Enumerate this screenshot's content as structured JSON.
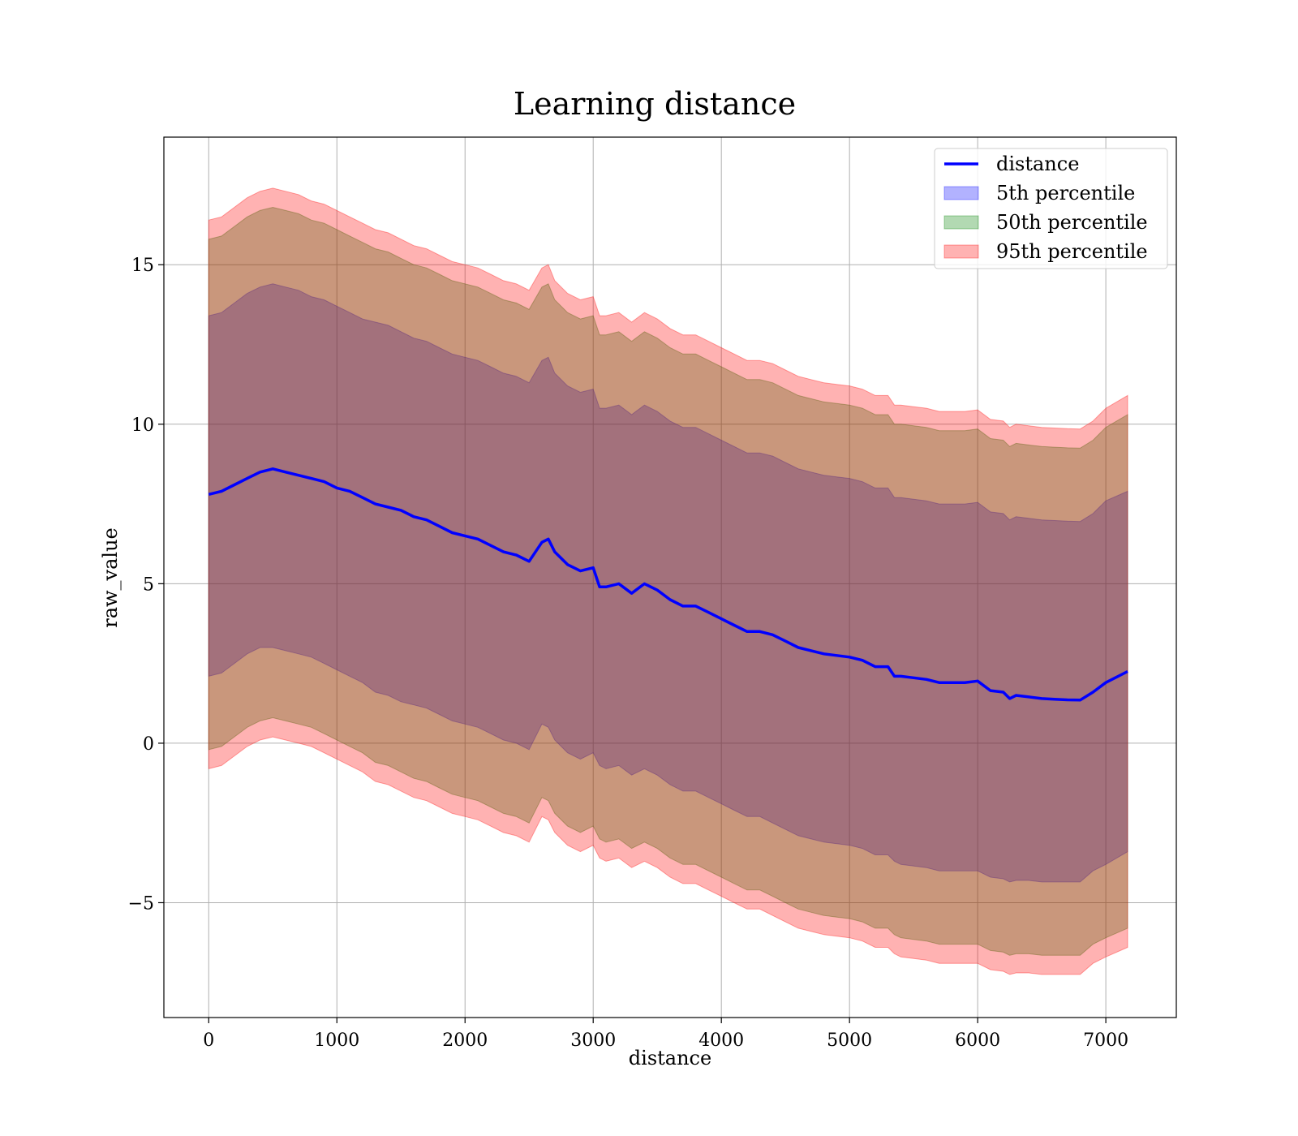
{
  "chart_data": {
    "type": "area",
    "title": "Learning distance",
    "xlabel": "distance",
    "ylabel": "raw_value",
    "xlim": [
      -350,
      7550
    ],
    "ylim": [
      -8.6,
      19.0
    ],
    "xticks": [
      0,
      1000,
      2000,
      3000,
      4000,
      5000,
      6000,
      7000
    ],
    "xtick_labels": [
      "0",
      "1000",
      "2000",
      "3000",
      "4000",
      "5000",
      "6000",
      "7000"
    ],
    "yticks": [
      -5,
      0,
      5,
      10,
      15
    ],
    "ytick_labels": [
      "−5",
      "0",
      "5",
      "10",
      "15"
    ],
    "grid": true,
    "legend_position": "top-right",
    "x": [
      0,
      100,
      200,
      300,
      400,
      500,
      600,
      700,
      800,
      900,
      1000,
      1100,
      1200,
      1300,
      1400,
      1500,
      1600,
      1700,
      1800,
      1900,
      2000,
      2100,
      2200,
      2300,
      2400,
      2500,
      2600,
      2650,
      2700,
      2800,
      2900,
      3000,
      3050,
      3100,
      3200,
      3300,
      3400,
      3500,
      3600,
      3700,
      3800,
      3900,
      4000,
      4100,
      4200,
      4300,
      4400,
      4500,
      4600,
      4700,
      4800,
      4900,
      5000,
      5100,
      5200,
      5300,
      5350,
      5400,
      5500,
      5600,
      5700,
      5800,
      5900,
      6000,
      6100,
      6200,
      6250,
      6300,
      6400,
      6500,
      6600,
      6700,
      6800,
      6900,
      7000,
      7170
    ],
    "series": [
      {
        "name": "distance",
        "kind": "line",
        "color": "#0000ff",
        "values": [
          7.8,
          7.9,
          8.1,
          8.3,
          8.5,
          8.6,
          8.5,
          8.4,
          8.3,
          8.2,
          8.0,
          7.9,
          7.7,
          7.5,
          7.4,
          7.3,
          7.1,
          7.0,
          6.8,
          6.6,
          6.5,
          6.4,
          6.2,
          6.0,
          5.9,
          5.7,
          6.3,
          6.4,
          6.0,
          5.6,
          5.4,
          5.5,
          4.9,
          4.9,
          5.0,
          4.7,
          5.0,
          4.8,
          4.5,
          4.3,
          4.3,
          4.1,
          3.9,
          3.7,
          3.5,
          3.5,
          3.4,
          3.2,
          3.0,
          2.9,
          2.8,
          2.75,
          2.7,
          2.6,
          2.4,
          2.4,
          2.1,
          2.1,
          2.05,
          2.0,
          1.9,
          1.9,
          1.9,
          1.95,
          1.65,
          1.6,
          1.4,
          1.5,
          1.45,
          1.4,
          1.38,
          1.36,
          1.35,
          1.6,
          1.9,
          2.25
        ]
      },
      {
        "name": "5th percentile",
        "kind": "band",
        "color": "#0000ff",
        "lower": [
          2.1,
          2.2,
          2.5,
          2.8,
          3.0,
          3.0,
          2.9,
          2.8,
          2.7,
          2.5,
          2.3,
          2.1,
          1.9,
          1.6,
          1.5,
          1.3,
          1.2,
          1.1,
          0.9,
          0.7,
          0.6,
          0.5,
          0.3,
          0.1,
          0.0,
          -0.2,
          0.6,
          0.5,
          0.1,
          -0.3,
          -0.5,
          -0.3,
          -0.7,
          -0.8,
          -0.7,
          -1.0,
          -0.8,
          -1.0,
          -1.3,
          -1.5,
          -1.5,
          -1.7,
          -1.9,
          -2.1,
          -2.3,
          -2.3,
          -2.5,
          -2.7,
          -2.9,
          -3.0,
          -3.1,
          -3.15,
          -3.2,
          -3.3,
          -3.5,
          -3.5,
          -3.7,
          -3.8,
          -3.85,
          -3.9,
          -4.0,
          -4.0,
          -4.0,
          -4.0,
          -4.2,
          -4.25,
          -4.35,
          -4.3,
          -4.3,
          -4.35,
          -4.35,
          -4.35,
          -4.35,
          -4.0,
          -3.8,
          -3.4
        ],
        "upper": [
          13.4,
          13.5,
          13.8,
          14.1,
          14.3,
          14.4,
          14.3,
          14.2,
          14.0,
          13.9,
          13.7,
          13.5,
          13.3,
          13.2,
          13.1,
          12.9,
          12.7,
          12.6,
          12.4,
          12.2,
          12.1,
          12.0,
          11.8,
          11.6,
          11.5,
          11.3,
          12.0,
          12.1,
          11.6,
          11.2,
          11.0,
          11.1,
          10.5,
          10.5,
          10.6,
          10.3,
          10.6,
          10.4,
          10.1,
          9.9,
          9.9,
          9.7,
          9.5,
          9.3,
          9.1,
          9.1,
          9.0,
          8.8,
          8.6,
          8.5,
          8.4,
          8.35,
          8.3,
          8.2,
          8.0,
          8.0,
          7.7,
          7.7,
          7.65,
          7.6,
          7.5,
          7.5,
          7.5,
          7.55,
          7.25,
          7.2,
          7.0,
          7.1,
          7.05,
          7.0,
          6.98,
          6.96,
          6.95,
          7.2,
          7.6,
          7.9
        ]
      },
      {
        "name": "50th percentile",
        "kind": "band",
        "color": "#008000",
        "lower": [
          -0.2,
          -0.1,
          0.2,
          0.5,
          0.7,
          0.8,
          0.7,
          0.6,
          0.5,
          0.3,
          0.1,
          -0.1,
          -0.3,
          -0.6,
          -0.7,
          -0.9,
          -1.1,
          -1.2,
          -1.4,
          -1.6,
          -1.7,
          -1.8,
          -2.0,
          -2.2,
          -2.3,
          -2.5,
          -1.7,
          -1.8,
          -2.2,
          -2.6,
          -2.8,
          -2.6,
          -3.0,
          -3.1,
          -3.0,
          -3.3,
          -3.1,
          -3.3,
          -3.6,
          -3.8,
          -3.8,
          -4.0,
          -4.2,
          -4.4,
          -4.6,
          -4.6,
          -4.8,
          -5.0,
          -5.2,
          -5.3,
          -5.4,
          -5.45,
          -5.5,
          -5.6,
          -5.8,
          -5.8,
          -6.0,
          -6.1,
          -6.15,
          -6.2,
          -6.3,
          -6.3,
          -6.3,
          -6.3,
          -6.5,
          -6.55,
          -6.65,
          -6.6,
          -6.6,
          -6.65,
          -6.65,
          -6.65,
          -6.65,
          -6.3,
          -6.1,
          -5.8
        ],
        "upper": [
          15.8,
          15.9,
          16.2,
          16.5,
          16.7,
          16.8,
          16.7,
          16.6,
          16.4,
          16.3,
          16.1,
          15.9,
          15.7,
          15.5,
          15.4,
          15.2,
          15.0,
          14.9,
          14.7,
          14.5,
          14.4,
          14.3,
          14.1,
          13.9,
          13.8,
          13.6,
          14.3,
          14.4,
          13.9,
          13.5,
          13.3,
          13.4,
          12.8,
          12.8,
          12.9,
          12.6,
          12.9,
          12.7,
          12.4,
          12.2,
          12.2,
          12.0,
          11.8,
          11.6,
          11.4,
          11.4,
          11.3,
          11.1,
          10.9,
          10.8,
          10.7,
          10.65,
          10.6,
          10.5,
          10.3,
          10.3,
          10.0,
          10.0,
          9.95,
          9.9,
          9.8,
          9.8,
          9.8,
          9.85,
          9.55,
          9.5,
          9.3,
          9.4,
          9.35,
          9.3,
          9.28,
          9.26,
          9.25,
          9.5,
          9.9,
          10.3
        ]
      },
      {
        "name": "95th percentile",
        "kind": "band",
        "color": "#ff0000",
        "lower": [
          -0.8,
          -0.7,
          -0.4,
          -0.1,
          0.1,
          0.2,
          0.1,
          0.0,
          -0.1,
          -0.3,
          -0.5,
          -0.7,
          -0.9,
          -1.2,
          -1.3,
          -1.5,
          -1.7,
          -1.8,
          -2.0,
          -2.2,
          -2.3,
          -2.4,
          -2.6,
          -2.8,
          -2.9,
          -3.1,
          -2.3,
          -2.4,
          -2.8,
          -3.2,
          -3.4,
          -3.2,
          -3.6,
          -3.7,
          -3.6,
          -3.9,
          -3.7,
          -3.9,
          -4.2,
          -4.4,
          -4.4,
          -4.6,
          -4.8,
          -5.0,
          -5.2,
          -5.2,
          -5.4,
          -5.6,
          -5.8,
          -5.9,
          -6.0,
          -6.05,
          -6.1,
          -6.2,
          -6.4,
          -6.4,
          -6.6,
          -6.7,
          -6.75,
          -6.8,
          -6.9,
          -6.9,
          -6.9,
          -6.9,
          -7.1,
          -7.15,
          -7.25,
          -7.2,
          -7.2,
          -7.25,
          -7.25,
          -7.25,
          -7.25,
          -6.9,
          -6.7,
          -6.4
        ],
        "upper": [
          16.4,
          16.5,
          16.8,
          17.1,
          17.3,
          17.4,
          17.3,
          17.2,
          17.0,
          16.9,
          16.7,
          16.5,
          16.3,
          16.1,
          16.0,
          15.8,
          15.6,
          15.5,
          15.3,
          15.1,
          15.0,
          14.9,
          14.7,
          14.5,
          14.4,
          14.2,
          14.9,
          15.0,
          14.5,
          14.1,
          13.9,
          14.0,
          13.4,
          13.4,
          13.5,
          13.2,
          13.5,
          13.3,
          13.0,
          12.8,
          12.8,
          12.6,
          12.4,
          12.2,
          12.0,
          12.0,
          11.9,
          11.7,
          11.5,
          11.4,
          11.3,
          11.25,
          11.2,
          11.1,
          10.9,
          10.9,
          10.6,
          10.6,
          10.55,
          10.5,
          10.4,
          10.4,
          10.4,
          10.45,
          10.15,
          10.1,
          9.9,
          10.0,
          9.95,
          9.9,
          9.88,
          9.86,
          9.85,
          10.1,
          10.5,
          10.9
        ]
      }
    ]
  }
}
